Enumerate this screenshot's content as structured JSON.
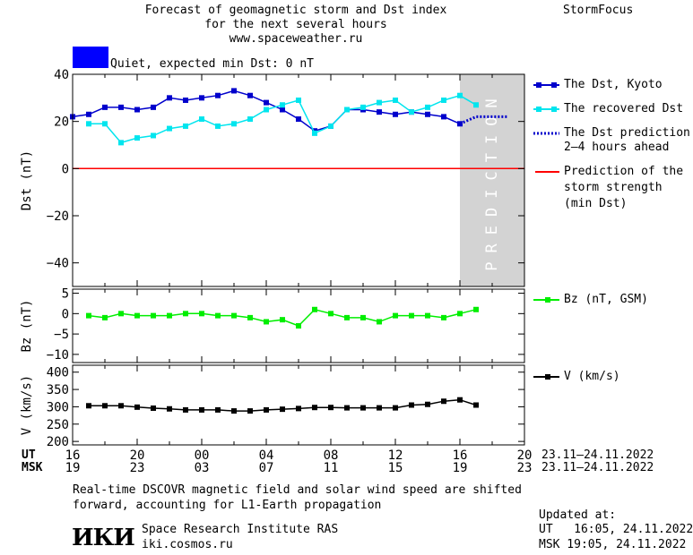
{
  "header": {
    "title_line1": "Forecast of geomagnetic storm and Dst index",
    "title_line2": "for the next several hours",
    "website": "www.spaceweather.ru",
    "brand": "StormFocus"
  },
  "status": {
    "text": "Quiet, expected min Dst: 0 nT",
    "color": "#0000ff"
  },
  "prediction_label": "PREDICTION",
  "legends": {
    "dst_kyoto": "The Dst, Kyoto",
    "dst_recovered": "The recovered Dst",
    "dst_prediction_line1": "The Dst prediction",
    "dst_prediction_line2": "2–4 hours ahead",
    "storm_line1": "Prediction of the",
    "storm_line2": "storm strength",
    "storm_line3": "(min Dst)",
    "bz": "Bz (nT, GSM)",
    "v": "V (km/s)"
  },
  "time_axis": {
    "ut_label": "UT",
    "msk_label": "MSK",
    "ut_ticks": [
      "16",
      "20",
      "00",
      "04",
      "08",
      "12",
      "16",
      "20"
    ],
    "msk_ticks": [
      "19",
      "23",
      "03",
      "07",
      "11",
      "15",
      "19",
      "23"
    ],
    "date_range_ut": "23.11–24.11.2022",
    "date_range_msk": "23.11–24.11.2022"
  },
  "footer": {
    "note_line1": "Real-time DSCOVR magnetic field and solar wind speed are shifted",
    "note_line2": "forward, accounting for L1-Earth propagation",
    "institute": "Space Research Institute RAS",
    "institute_url": "iki.cosmos.ru",
    "logo": "ИКИ",
    "updated_label": "Updated at:",
    "updated_ut": "UT   16:05, 24.11.2022",
    "updated_msk": "MSK 19:05, 24.11.2022"
  },
  "chart_data": [
    {
      "type": "line",
      "ylabel": "Dst (nT)",
      "ylim": [
        -50,
        40
      ],
      "xlim": [
        0,
        28
      ],
      "yticks": [
        -40,
        -20,
        0,
        20,
        40
      ],
      "prediction_region": [
        24,
        28
      ],
      "series": [
        {
          "name": "The Dst, Kyoto",
          "color": "#0000cc",
          "x": [
            0,
            1,
            2,
            3,
            4,
            5,
            6,
            7,
            8,
            9,
            10,
            11,
            12,
            13,
            14,
            15,
            16,
            17,
            18,
            19,
            20,
            21,
            22,
            23,
            24
          ],
          "y": [
            22,
            23,
            26,
            26,
            25,
            26,
            30,
            29,
            30,
            31,
            33,
            31,
            28,
            25,
            21,
            16,
            18,
            25,
            25,
            24,
            23,
            24,
            23,
            22,
            19
          ]
        },
        {
          "name": "The recovered Dst",
          "color": "#00e5ee",
          "x": [
            1,
            2,
            3,
            4,
            5,
            6,
            7,
            8,
            9,
            10,
            11,
            12,
            13,
            14,
            15,
            16,
            17,
            18,
            19,
            20,
            21,
            22,
            23,
            24,
            25
          ],
          "y": [
            19,
            19,
            11,
            13,
            14,
            17,
            18,
            21,
            18,
            19,
            21,
            25,
            27,
            29,
            15,
            18,
            25,
            26,
            28,
            29,
            24,
            26,
            29,
            31,
            27
          ]
        },
        {
          "name": "The Dst prediction 2–4 hours ahead",
          "color": "#0000cc",
          "x": [
            24,
            25,
            26,
            27
          ],
          "y": [
            19,
            22,
            22,
            22
          ]
        },
        {
          "name": "Prediction of the storm strength (min Dst)",
          "color": "#ff0000",
          "x": [
            0,
            28
          ],
          "y": [
            0,
            0
          ]
        }
      ]
    },
    {
      "type": "line",
      "ylabel": "Bz (nT)",
      "ylim": [
        -12,
        6
      ],
      "xlim": [
        0,
        28
      ],
      "yticks": [
        -10,
        -5,
        0,
        5
      ],
      "series": [
        {
          "name": "Bz (nT, GSM)",
          "color": "#00ee00",
          "x": [
            1,
            2,
            3,
            4,
            5,
            6,
            7,
            8,
            9,
            10,
            11,
            12,
            13,
            14,
            15,
            16,
            17,
            18,
            19,
            20,
            21,
            22,
            23,
            24,
            25
          ],
          "y": [
            -0.5,
            -1,
            0,
            -0.5,
            -0.5,
            -0.5,
            0,
            0,
            -0.5,
            -0.5,
            -1,
            -2,
            -1.5,
            -3,
            1,
            0,
            -1,
            -1,
            -2,
            -0.5,
            -0.5,
            -0.5,
            -1,
            0,
            1
          ]
        }
      ]
    },
    {
      "type": "line",
      "ylabel": "V (km/s)",
      "ylim": [
        190,
        420
      ],
      "xlim": [
        0,
        28
      ],
      "yticks": [
        200,
        250,
        300,
        350,
        400
      ],
      "series": [
        {
          "name": "V (km/s)",
          "color": "#000000",
          "x": [
            1,
            2,
            3,
            4,
            5,
            6,
            7,
            8,
            9,
            10,
            11,
            12,
            13,
            14,
            15,
            16,
            17,
            18,
            19,
            20,
            21,
            22,
            23,
            24,
            25
          ],
          "y": [
            303,
            303,
            303,
            299,
            296,
            294,
            291,
            291,
            291,
            288,
            288,
            291,
            293,
            295,
            298,
            298,
            297,
            297,
            297,
            297,
            305,
            307,
            316,
            320,
            305
          ]
        }
      ]
    }
  ]
}
